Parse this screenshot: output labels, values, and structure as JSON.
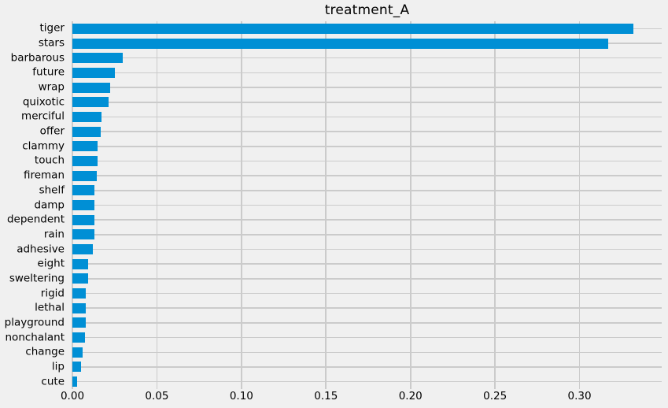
{
  "chart_data": {
    "type": "bar",
    "orientation": "horizontal",
    "title": "treatment_A",
    "categories": [
      "tiger",
      "stars",
      "barbarous",
      "future",
      "wrap",
      "quixotic",
      "merciful",
      "offer",
      "clammy",
      "touch",
      "fireman",
      "shelf",
      "damp",
      "dependent",
      "rain",
      "adhesive",
      "eight",
      "sweltering",
      "rigid",
      "lethal",
      "playground",
      "nonchalant",
      "change",
      "lip",
      "cute"
    ],
    "values": [
      0.332,
      0.317,
      0.03,
      0.025,
      0.0225,
      0.0215,
      0.0172,
      0.0168,
      0.015,
      0.0148,
      0.0145,
      0.0132,
      0.0131,
      0.0129,
      0.0128,
      0.0119,
      0.0094,
      0.0093,
      0.008,
      0.0079,
      0.0079,
      0.0075,
      0.0062,
      0.0051,
      0.0028
    ],
    "xlabel": "",
    "ylabel": "",
    "xlim": [
      0,
      0.3486
    ],
    "xticks": [
      0,
      0.05,
      0.1,
      0.15,
      0.2,
      0.25,
      0.3
    ],
    "xtick_labels": [
      "0.00",
      "0.05",
      "0.10",
      "0.15",
      "0.20",
      "0.25",
      "0.30"
    ],
    "grid": true,
    "legend": false,
    "colors": {
      "bar": "#008fd5",
      "background": "#f0f0f0",
      "grid": "#cbcbcb",
      "text": "#000000"
    }
  }
}
